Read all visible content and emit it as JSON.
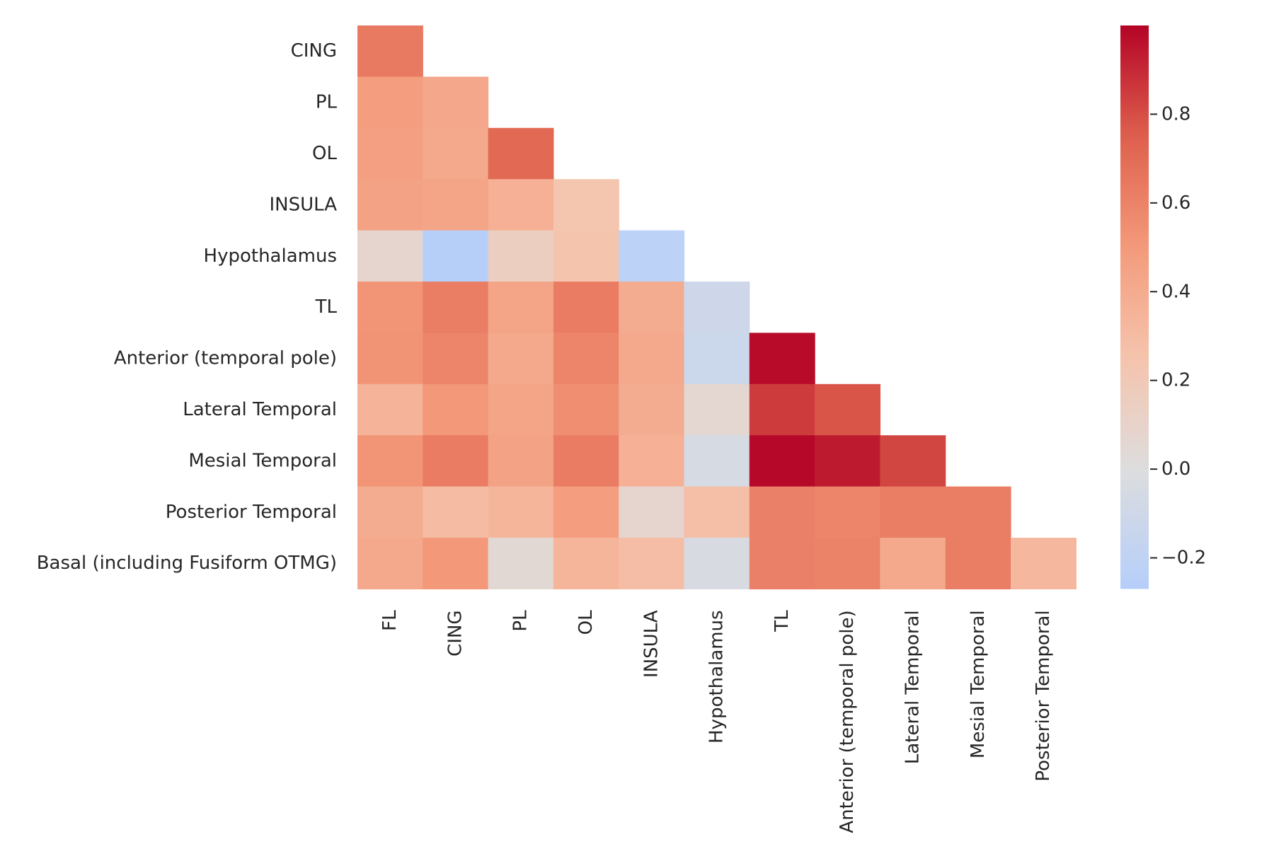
{
  "chart_data": {
    "type": "heatmap",
    "title": "",
    "xlabel": "",
    "ylabel": "",
    "colormap": "coolwarm",
    "mask": "upper-triangle",
    "x_labels": [
      "FL",
      "CING",
      "PL",
      "OL",
      "INSULA",
      "Hypothalamus",
      "TL",
      "Anterior (temporal pole)",
      "Lateral Temporal",
      "Mesial Temporal",
      "Posterior Temporal"
    ],
    "y_labels": [
      "CING",
      "PL",
      "OL",
      "INSULA",
      "Hypothalamus",
      "TL",
      "Anterior (temporal pole)",
      "Lateral Temporal",
      "Mesial Temporal",
      "Posterior Temporal",
      "Basal (including Fusiform OTMG)"
    ],
    "values": [
      [
        0.64
      ],
      [
        0.48,
        0.42
      ],
      [
        0.47,
        0.41,
        0.71
      ],
      [
        0.45,
        0.44,
        0.37,
        0.24
      ],
      [
        0.08,
        -0.26,
        0.15,
        0.25,
        -0.22
      ],
      [
        0.52,
        0.62,
        0.44,
        0.63,
        0.39,
        -0.11
      ],
      [
        0.53,
        0.59,
        0.41,
        0.59,
        0.41,
        -0.12,
        0.98
      ],
      [
        0.35,
        0.51,
        0.44,
        0.55,
        0.39,
        0.07,
        0.85,
        0.78
      ],
      [
        0.52,
        0.63,
        0.45,
        0.63,
        0.37,
        -0.05,
        0.99,
        0.94,
        0.82
      ],
      [
        0.39,
        0.3,
        0.34,
        0.48,
        0.08,
        0.28,
        0.61,
        0.59,
        0.62,
        0.62
      ],
      [
        0.41,
        0.51,
        0.05,
        0.34,
        0.29,
        -0.04,
        0.61,
        0.6,
        0.41,
        0.62,
        0.33
      ]
    ],
    "colorbar": {
      "vmin": -0.27,
      "vmax": 1.0,
      "ticks": [
        -0.2,
        0.0,
        0.2,
        0.4,
        0.6,
        0.8
      ],
      "tick_labels": [
        "−0.2",
        "0.0",
        "0.2",
        "0.4",
        "0.6",
        "0.8"
      ]
    }
  }
}
